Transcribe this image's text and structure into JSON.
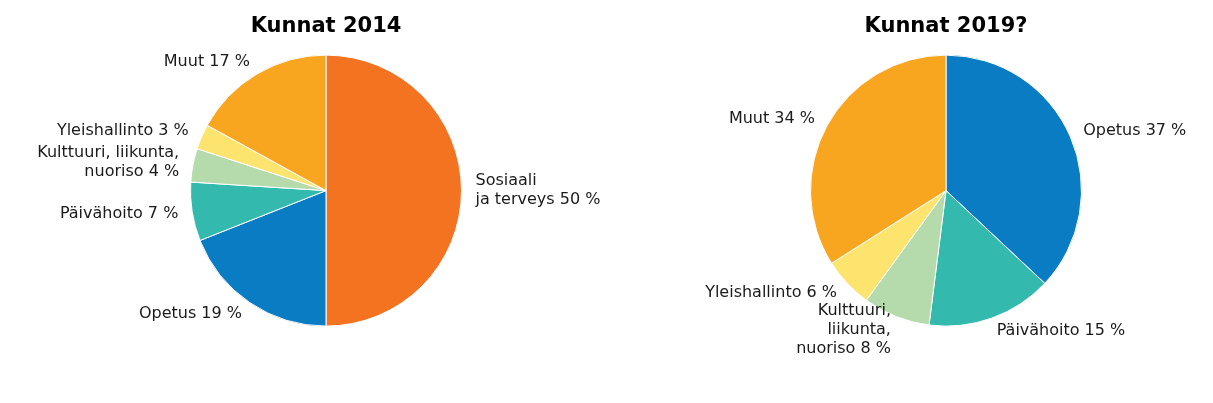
{
  "chart_data": [
    {
      "type": "pie",
      "title": "Kunnat 2014",
      "categories": [
        "Sosiaali\nja terveys",
        "Opetus",
        "Päivähoito",
        "Kulttuuri, liikunta,\nnuoriso",
        "Yleishallinto",
        "Muut"
      ],
      "values": [
        50,
        19,
        7,
        4,
        3,
        17
      ],
      "value_labels": [
        "50 %",
        "19 %",
        "7 %",
        "4 %",
        "3 %",
        "17 %"
      ],
      "colors": [
        "#f37321",
        "#0a7cc4",
        "#33b9ad",
        "#b5dbad",
        "#fde46e",
        "#f8a51f"
      ]
    },
    {
      "type": "pie",
      "title": "Kunnat 2019?",
      "categories": [
        "Opetus",
        "Päivähoito",
        "Kulttuuri,\nliikunta,\nnuoriso",
        "Yleishallinto",
        "Muut"
      ],
      "values": [
        37,
        15,
        8,
        6,
        34
      ],
      "value_labels": [
        "37 %",
        "15 %",
        "8 %",
        "6 %",
        "34 %"
      ],
      "colors": [
        "#0a7cc4",
        "#33b9ad",
        "#b5dbad",
        "#fde46e",
        "#f8a51f"
      ]
    }
  ]
}
